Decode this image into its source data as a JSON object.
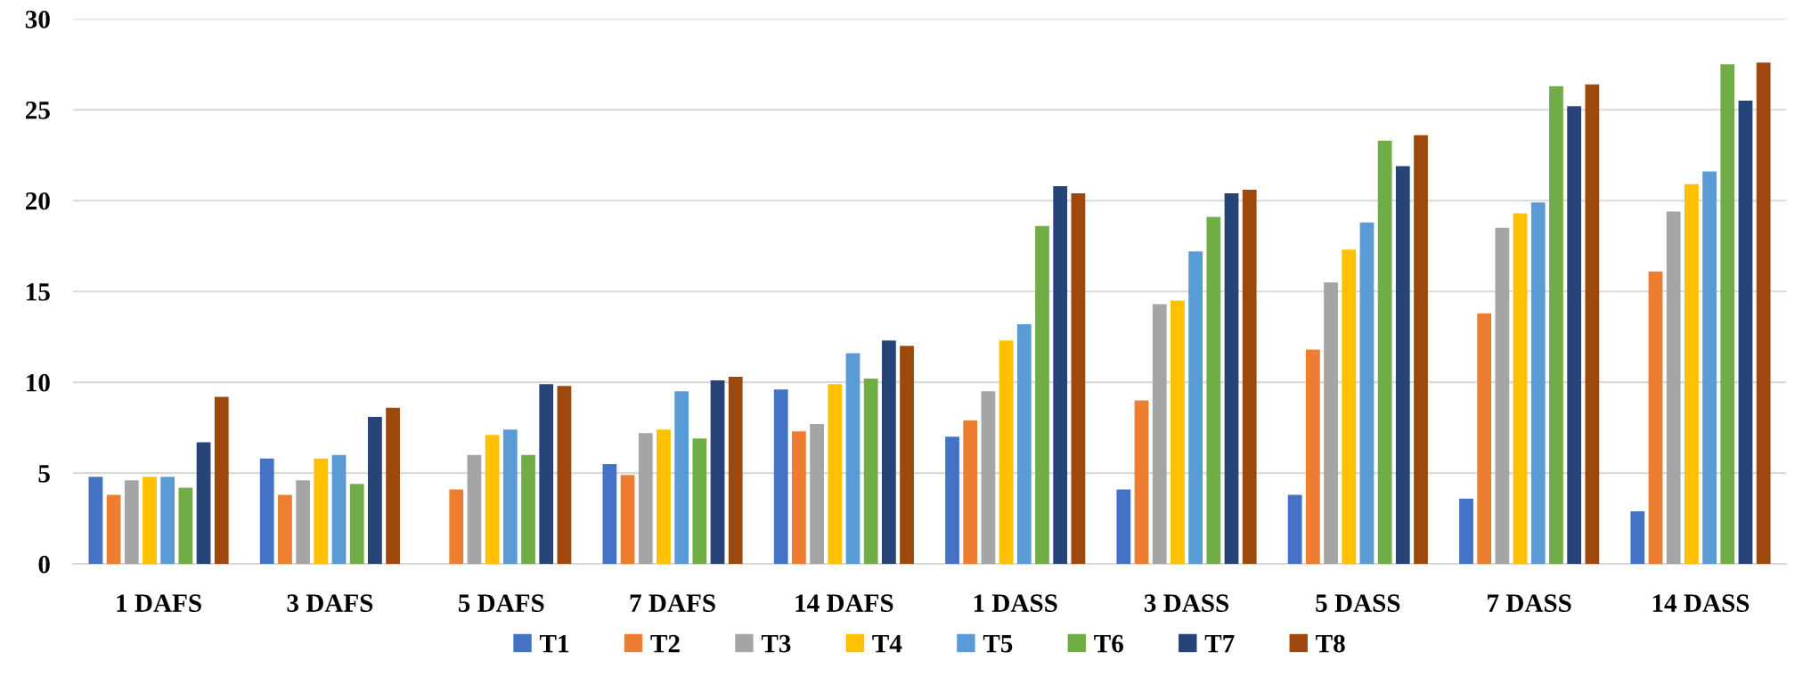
{
  "chart_data": {
    "type": "bar",
    "categories": [
      "1 DAFS",
      "3 DAFS",
      "5 DAFS",
      "7 DAFS",
      "14 DAFS",
      "1 DASS",
      "3 DASS",
      "5 DASS",
      "7 DASS",
      "14 DASS"
    ],
    "series": [
      {
        "name": "T1",
        "color": "#4472c4",
        "values": [
          4.8,
          5.8,
          null,
          5.5,
          9.6,
          7.0,
          4.1,
          3.8,
          3.6,
          2.9
        ]
      },
      {
        "name": "T2",
        "color": "#ed7d31",
        "values": [
          3.8,
          3.8,
          4.1,
          4.9,
          7.3,
          7.9,
          9.0,
          11.8,
          13.8,
          16.1
        ]
      },
      {
        "name": "T3",
        "color": "#a5a5a5",
        "values": [
          4.6,
          4.6,
          6.0,
          7.2,
          7.7,
          9.5,
          14.3,
          15.5,
          18.5,
          19.4
        ]
      },
      {
        "name": "T4",
        "color": "#ffc000",
        "values": [
          4.8,
          5.8,
          7.1,
          7.4,
          9.9,
          12.3,
          14.5,
          17.3,
          19.3,
          20.9
        ]
      },
      {
        "name": "T5",
        "color": "#5b9bd5",
        "values": [
          4.8,
          6.0,
          7.4,
          9.5,
          11.6,
          13.2,
          17.2,
          18.8,
          19.9,
          21.6
        ]
      },
      {
        "name": "T6",
        "color": "#70ad47",
        "values": [
          4.2,
          4.4,
          6.0,
          6.9,
          10.2,
          18.6,
          19.1,
          23.3,
          26.3,
          27.5
        ]
      },
      {
        "name": "T7",
        "color": "#264478",
        "values": [
          6.7,
          8.1,
          9.9,
          10.1,
          12.3,
          20.8,
          20.4,
          21.9,
          25.2,
          25.5
        ]
      },
      {
        "name": "T8",
        "color": "#9e480e",
        "values": [
          9.2,
          8.6,
          9.8,
          10.3,
          12.0,
          20.4,
          20.6,
          23.6,
          26.4,
          27.6
        ]
      }
    ],
    "ylim": [
      0,
      30
    ],
    "yticks": [
      0,
      5,
      10,
      15,
      20,
      25,
      30
    ],
    "grid": "y",
    "legend": "bottom"
  }
}
